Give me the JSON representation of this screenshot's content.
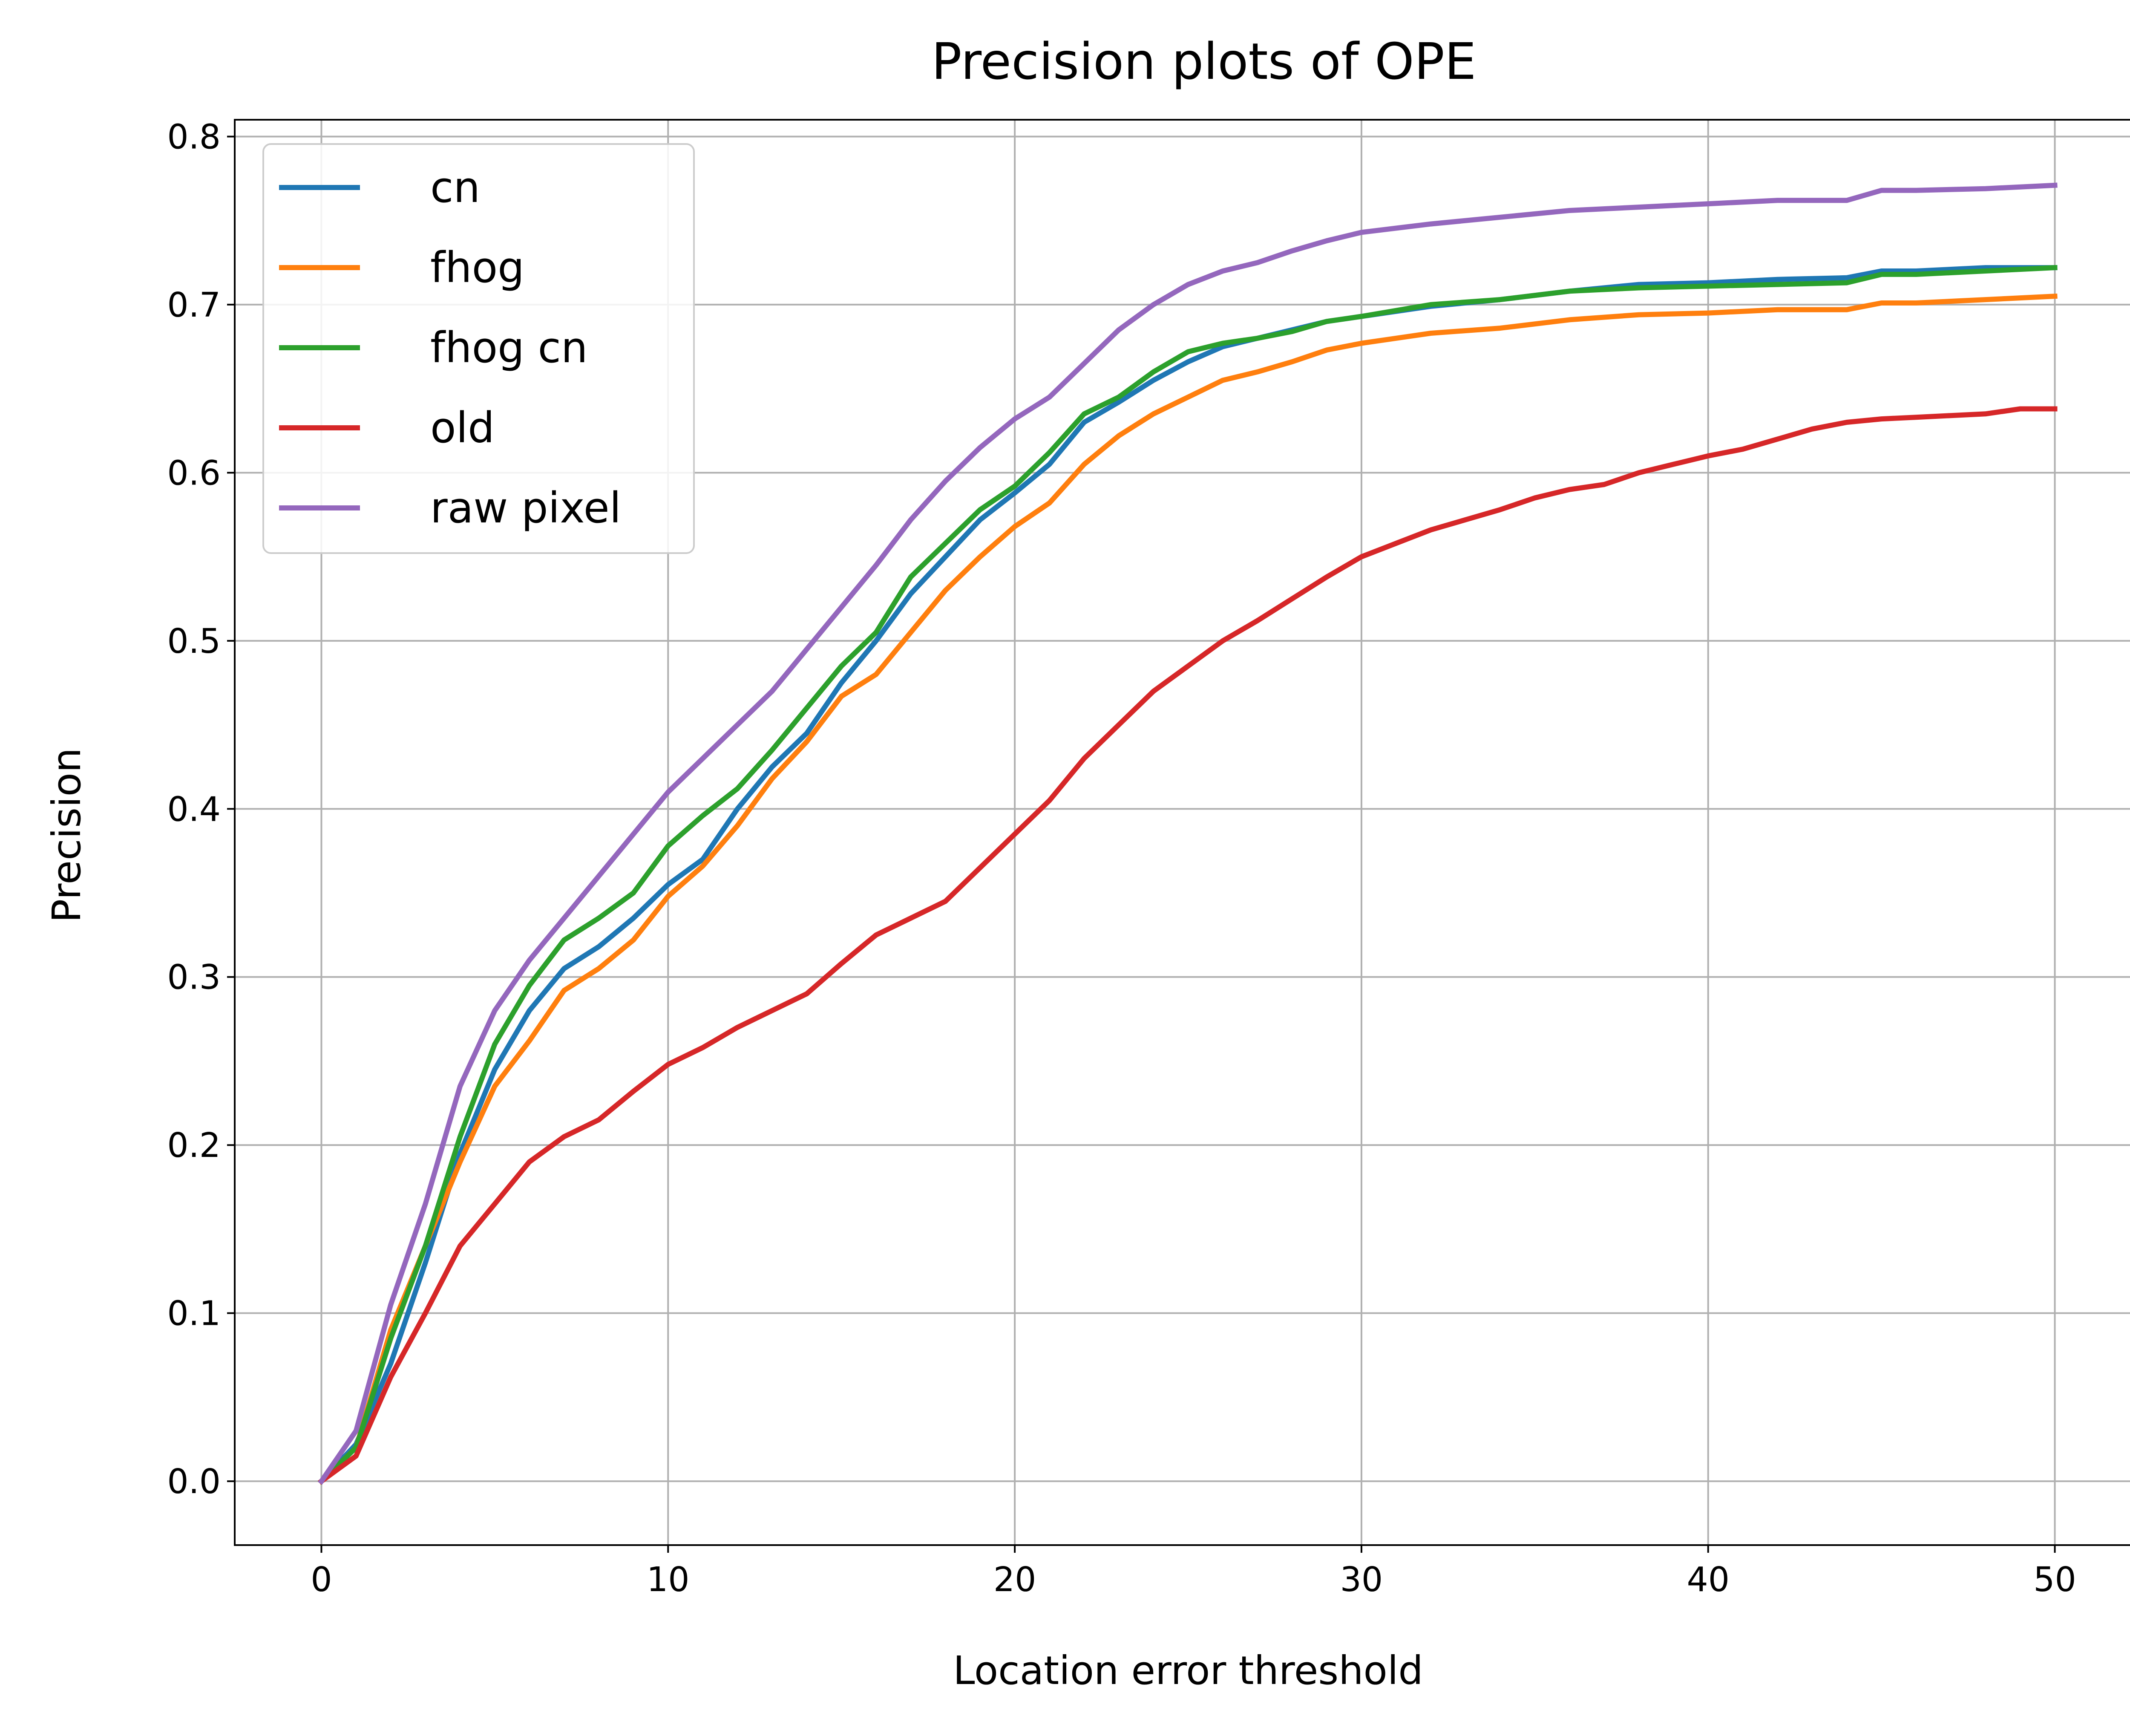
{
  "chart_data": {
    "type": "line",
    "title": "Precision plots of OPE",
    "xlabel": "Location error threshold",
    "ylabel": "Precision",
    "xlim": [
      -2.5,
      52.5
    ],
    "ylim": [
      -0.038,
      0.81
    ],
    "xticks": [
      0,
      10,
      20,
      30,
      40,
      50
    ],
    "xtick_labels": [
      "0",
      "10",
      "20",
      "30",
      "40",
      "50"
    ],
    "yticks": [
      0.0,
      0.1,
      0.2,
      0.3,
      0.4,
      0.5,
      0.6,
      0.7,
      0.8
    ],
    "ytick_labels": [
      "0.0",
      "0.1",
      "0.2",
      "0.3",
      "0.4",
      "0.5",
      "0.6",
      "0.7",
      "0.8"
    ],
    "grid": true,
    "legend_position": "upper-left",
    "series": [
      {
        "name": "cn",
        "color": "#1f77b4",
        "points": [
          [
            0,
            0.0
          ],
          [
            1,
            0.022
          ],
          [
            2,
            0.07
          ],
          [
            3,
            0.13
          ],
          [
            4,
            0.195
          ],
          [
            5,
            0.245
          ],
          [
            6,
            0.28
          ],
          [
            7,
            0.305
          ],
          [
            8,
            0.318
          ],
          [
            9,
            0.335
          ],
          [
            10,
            0.355
          ],
          [
            11,
            0.37
          ],
          [
            12,
            0.4
          ],
          [
            13,
            0.425
          ],
          [
            14,
            0.445
          ],
          [
            15,
            0.475
          ],
          [
            16,
            0.5
          ],
          [
            17,
            0.528
          ],
          [
            18,
            0.55
          ],
          [
            19,
            0.572
          ],
          [
            20,
            0.588
          ],
          [
            21,
            0.605
          ],
          [
            22,
            0.63
          ],
          [
            23,
            0.642
          ],
          [
            24,
            0.655
          ],
          [
            25,
            0.666
          ],
          [
            26,
            0.675
          ],
          [
            27,
            0.68
          ],
          [
            28,
            0.685
          ],
          [
            29,
            0.69
          ],
          [
            30,
            0.693
          ],
          [
            32,
            0.699
          ],
          [
            34,
            0.703
          ],
          [
            36,
            0.708
          ],
          [
            38,
            0.712
          ],
          [
            40,
            0.713
          ],
          [
            42,
            0.715
          ],
          [
            44,
            0.716
          ],
          [
            45,
            0.72
          ],
          [
            46,
            0.72
          ],
          [
            48,
            0.722
          ],
          [
            50,
            0.722
          ]
        ]
      },
      {
        "name": "fhog",
        "color": "#ff7f0e",
        "points": [
          [
            0,
            0.0
          ],
          [
            1,
            0.02
          ],
          [
            2,
            0.09
          ],
          [
            3,
            0.14
          ],
          [
            4,
            0.19
          ],
          [
            5,
            0.235
          ],
          [
            6,
            0.262
          ],
          [
            7,
            0.292
          ],
          [
            8,
            0.305
          ],
          [
            9,
            0.322
          ],
          [
            10,
            0.348
          ],
          [
            11,
            0.366
          ],
          [
            12,
            0.39
          ],
          [
            13,
            0.418
          ],
          [
            14,
            0.44
          ],
          [
            15,
            0.467
          ],
          [
            16,
            0.48
          ],
          [
            17,
            0.505
          ],
          [
            18,
            0.53
          ],
          [
            19,
            0.55
          ],
          [
            20,
            0.568
          ],
          [
            21,
            0.582
          ],
          [
            22,
            0.605
          ],
          [
            23,
            0.622
          ],
          [
            24,
            0.635
          ],
          [
            25,
            0.645
          ],
          [
            26,
            0.655
          ],
          [
            27,
            0.66
          ],
          [
            28,
            0.666
          ],
          [
            29,
            0.673
          ],
          [
            30,
            0.677
          ],
          [
            32,
            0.683
          ],
          [
            34,
            0.686
          ],
          [
            36,
            0.691
          ],
          [
            38,
            0.694
          ],
          [
            40,
            0.695
          ],
          [
            42,
            0.697
          ],
          [
            44,
            0.697
          ],
          [
            45,
            0.701
          ],
          [
            46,
            0.701
          ],
          [
            48,
            0.703
          ],
          [
            50,
            0.705
          ]
        ]
      },
      {
        "name": "fhog cn",
        "color": "#2ca02c",
        "points": [
          [
            0,
            0.0
          ],
          [
            1,
            0.02
          ],
          [
            2,
            0.085
          ],
          [
            3,
            0.14
          ],
          [
            4,
            0.205
          ],
          [
            5,
            0.26
          ],
          [
            6,
            0.295
          ],
          [
            7,
            0.322
          ],
          [
            8,
            0.335
          ],
          [
            9,
            0.35
          ],
          [
            10,
            0.378
          ],
          [
            11,
            0.396
          ],
          [
            12,
            0.412
          ],
          [
            13,
            0.435
          ],
          [
            14,
            0.46
          ],
          [
            15,
            0.485
          ],
          [
            16,
            0.505
          ],
          [
            17,
            0.538
          ],
          [
            18,
            0.558
          ],
          [
            19,
            0.578
          ],
          [
            20,
            0.592
          ],
          [
            21,
            0.612
          ],
          [
            22,
            0.635
          ],
          [
            23,
            0.645
          ],
          [
            24,
            0.66
          ],
          [
            25,
            0.672
          ],
          [
            26,
            0.677
          ],
          [
            27,
            0.68
          ],
          [
            28,
            0.684
          ],
          [
            29,
            0.69
          ],
          [
            30,
            0.693
          ],
          [
            32,
            0.7
          ],
          [
            34,
            0.703
          ],
          [
            36,
            0.708
          ],
          [
            38,
            0.71
          ],
          [
            40,
            0.711
          ],
          [
            42,
            0.712
          ],
          [
            44,
            0.713
          ],
          [
            45,
            0.718
          ],
          [
            46,
            0.718
          ],
          [
            48,
            0.72
          ],
          [
            50,
            0.722
          ]
        ]
      },
      {
        "name": "old",
        "color": "#d62728",
        "points": [
          [
            0,
            0.0
          ],
          [
            1,
            0.015
          ],
          [
            2,
            0.062
          ],
          [
            3,
            0.1
          ],
          [
            4,
            0.14
          ],
          [
            5,
            0.165
          ],
          [
            6,
            0.19
          ],
          [
            7,
            0.205
          ],
          [
            8,
            0.215
          ],
          [
            9,
            0.232
          ],
          [
            10,
            0.248
          ],
          [
            11,
            0.258
          ],
          [
            12,
            0.27
          ],
          [
            13,
            0.28
          ],
          [
            14,
            0.29
          ],
          [
            15,
            0.308
          ],
          [
            16,
            0.325
          ],
          [
            17,
            0.335
          ],
          [
            18,
            0.345
          ],
          [
            19,
            0.365
          ],
          [
            20,
            0.385
          ],
          [
            21,
            0.405
          ],
          [
            22,
            0.43
          ],
          [
            23,
            0.45
          ],
          [
            24,
            0.47
          ],
          [
            25,
            0.485
          ],
          [
            26,
            0.5
          ],
          [
            27,
            0.512
          ],
          [
            28,
            0.525
          ],
          [
            29,
            0.538
          ],
          [
            30,
            0.55
          ],
          [
            31,
            0.558
          ],
          [
            32,
            0.566
          ],
          [
            33,
            0.572
          ],
          [
            34,
            0.578
          ],
          [
            35,
            0.585
          ],
          [
            36,
            0.59
          ],
          [
            37,
            0.593
          ],
          [
            38,
            0.6
          ],
          [
            39,
            0.605
          ],
          [
            40,
            0.61
          ],
          [
            41,
            0.614
          ],
          [
            42,
            0.62
          ],
          [
            43,
            0.626
          ],
          [
            44,
            0.63
          ],
          [
            45,
            0.632
          ],
          [
            46,
            0.633
          ],
          [
            47,
            0.634
          ],
          [
            48,
            0.635
          ],
          [
            49,
            0.638
          ],
          [
            50,
            0.638
          ]
        ]
      },
      {
        "name": "raw pixel",
        "color": "#9467bd",
        "points": [
          [
            0,
            0.0
          ],
          [
            1,
            0.03
          ],
          [
            2,
            0.105
          ],
          [
            3,
            0.165
          ],
          [
            4,
            0.235
          ],
          [
            5,
            0.28
          ],
          [
            6,
            0.31
          ],
          [
            7,
            0.335
          ],
          [
            8,
            0.36
          ],
          [
            9,
            0.385
          ],
          [
            10,
            0.41
          ],
          [
            11,
            0.43
          ],
          [
            12,
            0.45
          ],
          [
            13,
            0.47
          ],
          [
            14,
            0.495
          ],
          [
            15,
            0.52
          ],
          [
            16,
            0.545
          ],
          [
            17,
            0.572
          ],
          [
            18,
            0.595
          ],
          [
            19,
            0.615
          ],
          [
            20,
            0.632
          ],
          [
            21,
            0.645
          ],
          [
            22,
            0.665
          ],
          [
            23,
            0.685
          ],
          [
            24,
            0.7
          ],
          [
            25,
            0.712
          ],
          [
            26,
            0.72
          ],
          [
            27,
            0.725
          ],
          [
            28,
            0.732
          ],
          [
            29,
            0.738
          ],
          [
            30,
            0.743
          ],
          [
            32,
            0.748
          ],
          [
            34,
            0.752
          ],
          [
            36,
            0.756
          ],
          [
            38,
            0.758
          ],
          [
            40,
            0.76
          ],
          [
            42,
            0.762
          ],
          [
            44,
            0.762
          ],
          [
            45,
            0.768
          ],
          [
            46,
            0.768
          ],
          [
            48,
            0.769
          ],
          [
            50,
            0.771
          ]
        ]
      }
    ]
  }
}
